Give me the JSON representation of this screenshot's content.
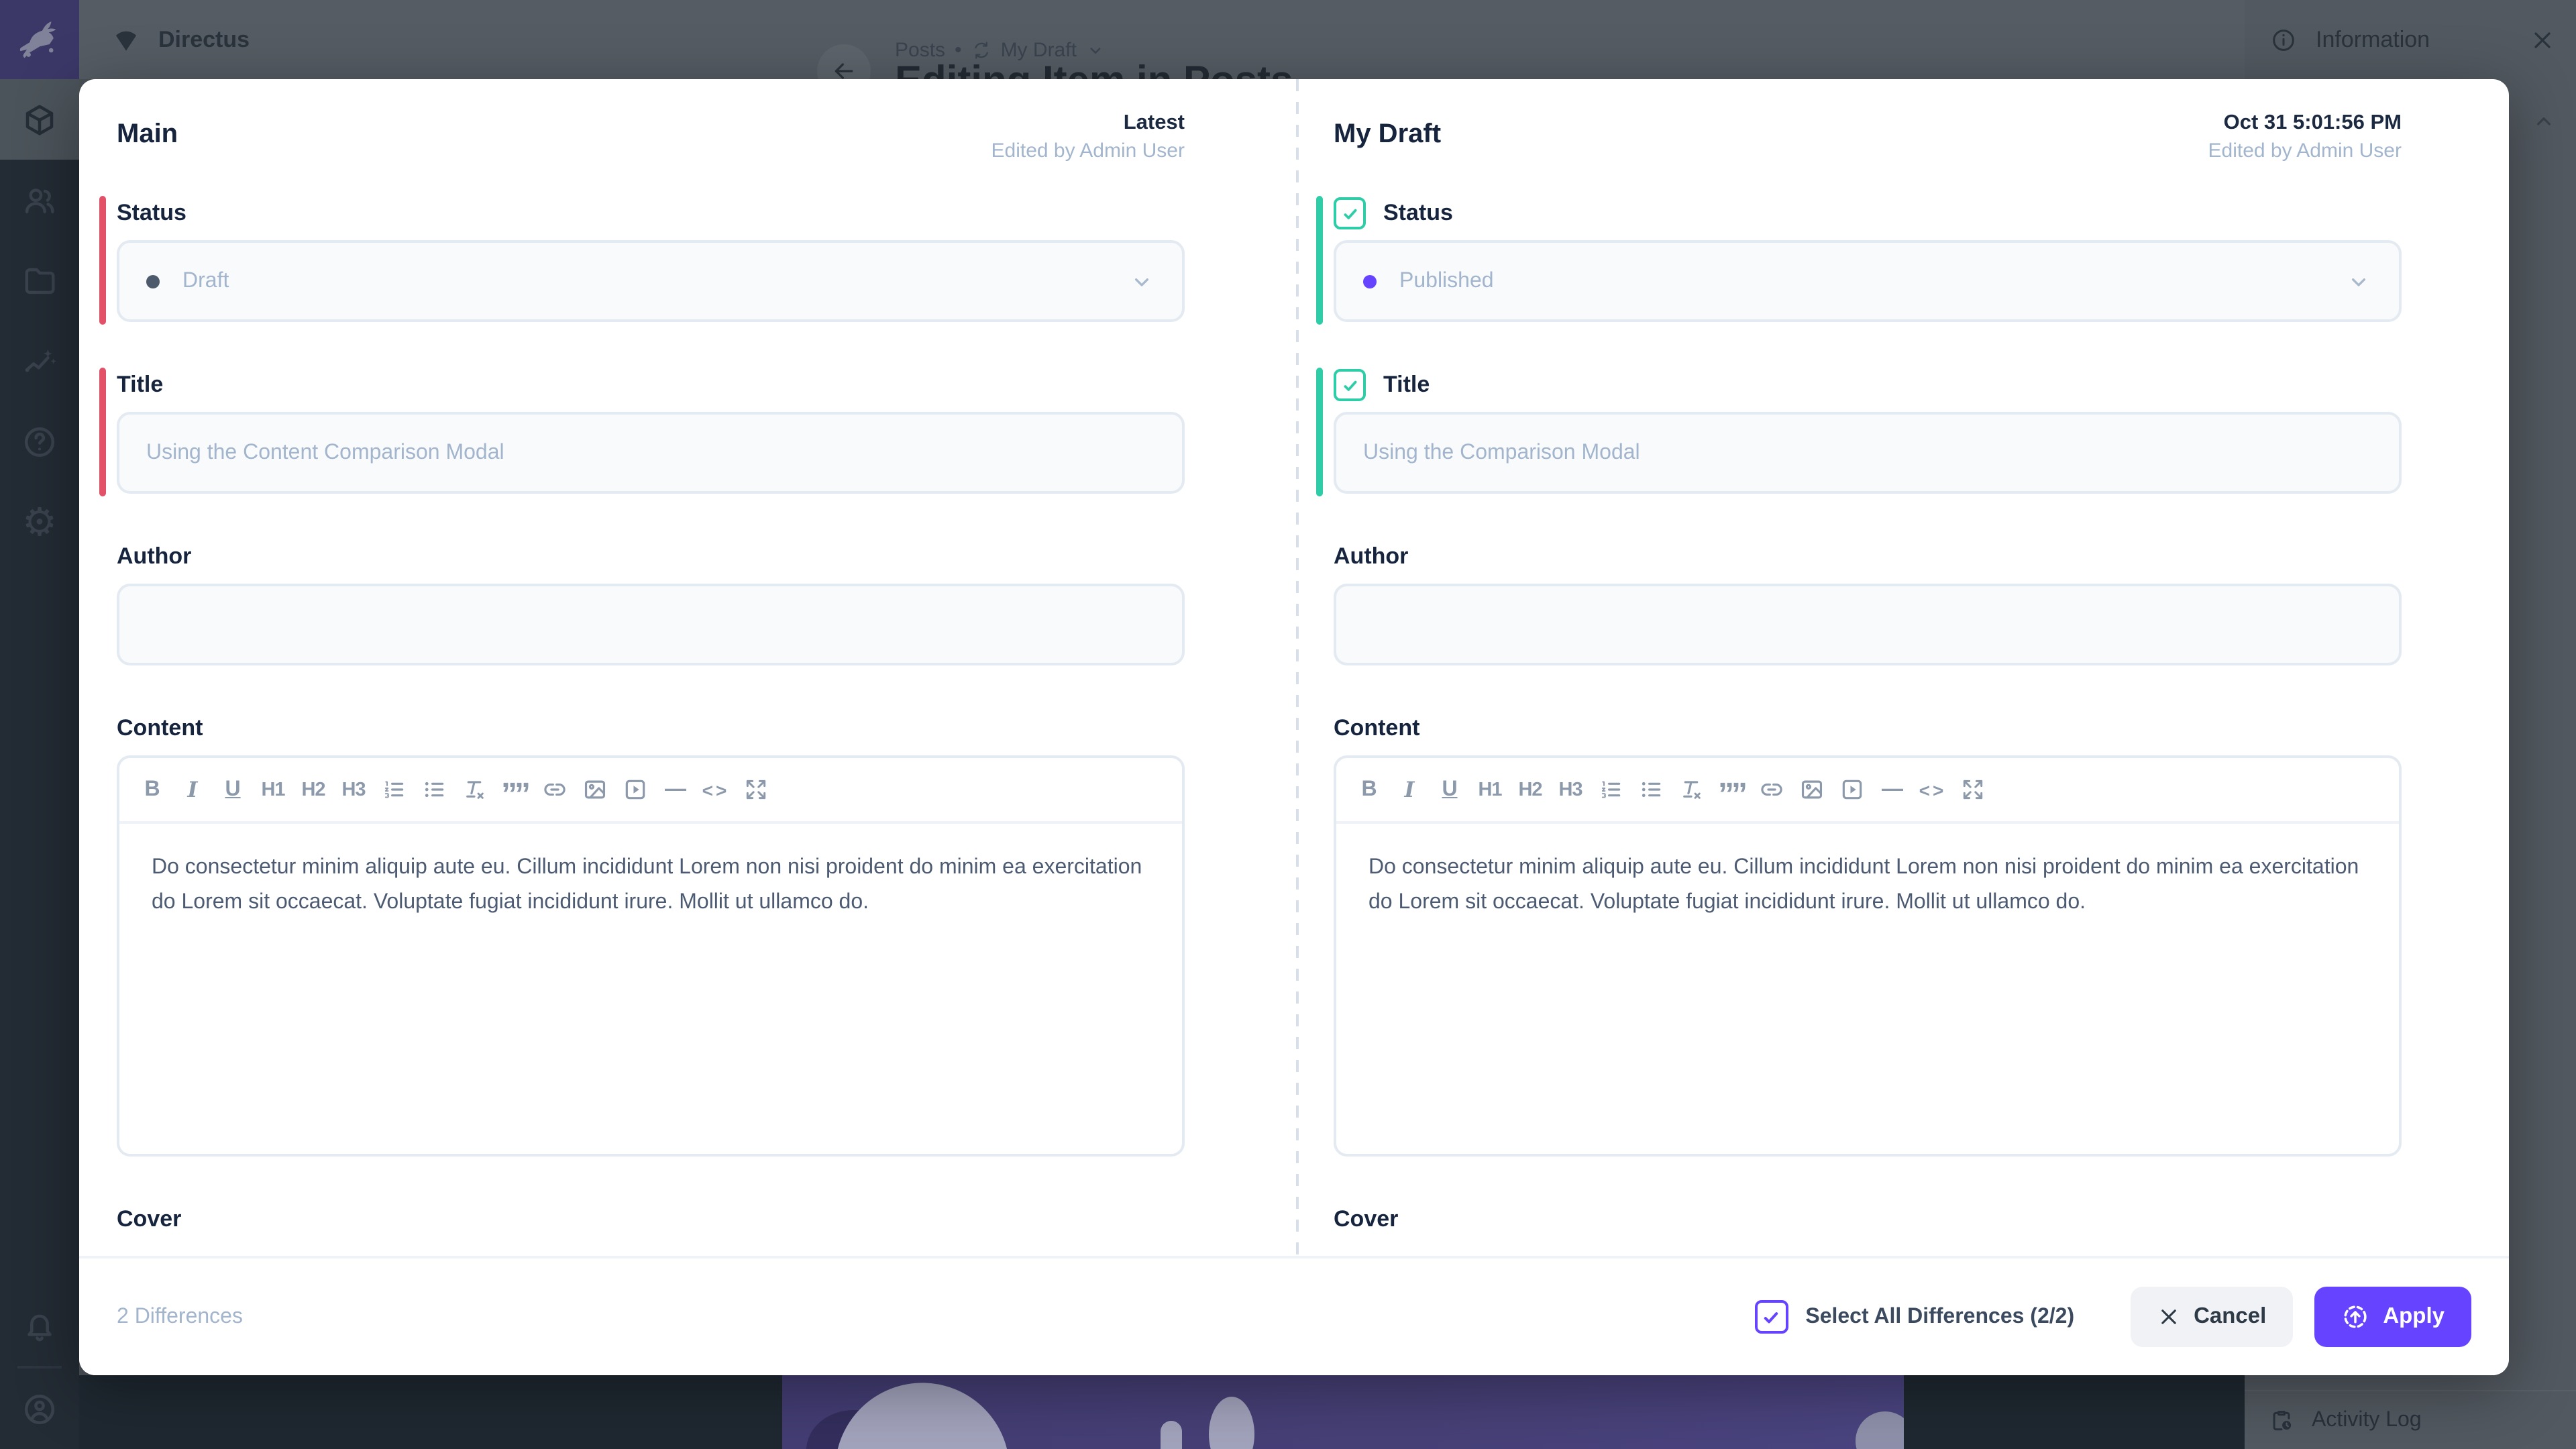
{
  "app": {
    "title": "Directus",
    "breadcrumb": {
      "collection": "Posts",
      "separator": "•",
      "version": "My Draft"
    },
    "page_title": "Editing Item in Posts",
    "module_bar": {
      "modules": [
        "collections",
        "user-directory",
        "file-library",
        "insights",
        "documentation",
        "settings"
      ],
      "active_module": "collections",
      "bottom": [
        "notifications",
        "account"
      ]
    },
    "info_panel": {
      "title": "Information"
    },
    "activity_log": {
      "title": "Activity Log"
    }
  },
  "modal": {
    "panes": [
      {
        "id": "main",
        "title": "Main",
        "meta_primary": "Latest",
        "meta_secondary": "Edited by Admin User",
        "accent": "#E35169",
        "show_checkboxes": false,
        "fields": [
          {
            "label": "Status",
            "type": "select",
            "value": "Draft",
            "dot_color": "#4d5a6b",
            "changed": true,
            "checked": false
          },
          {
            "label": "Title",
            "type": "text",
            "value": "Using the Content Comparison Modal",
            "changed": true,
            "checked": false
          },
          {
            "label": "Author",
            "type": "text",
            "value": "",
            "changed": false,
            "checked": false
          },
          {
            "label": "Content",
            "type": "richtext",
            "value": "Do consectetur minim aliquip aute eu. Cillum incididunt Lorem non nisi proident do minim ea exercitation do Lorem sit occaecat. Voluptate fugiat incididunt irure. Mollit ut ullamco do.",
            "changed": false,
            "checked": false
          },
          {
            "label": "Cover",
            "type": "clipped",
            "value": "",
            "changed": false,
            "checked": false
          }
        ]
      },
      {
        "id": "my-draft",
        "title": "My Draft",
        "meta_primary": "Oct 31 5:01:56 PM",
        "meta_secondary": "Edited by Admin User",
        "accent": "#2ECDA7",
        "show_checkboxes": true,
        "fields": [
          {
            "label": "Status",
            "type": "select",
            "value": "Published",
            "dot_color": "#6644ff",
            "changed": true,
            "checked": true
          },
          {
            "label": "Title",
            "type": "text",
            "value": "Using the Comparison Modal",
            "changed": true,
            "checked": true
          },
          {
            "label": "Author",
            "type": "text",
            "value": "",
            "changed": false,
            "checked": false
          },
          {
            "label": "Content",
            "type": "richtext",
            "value": "Do consectetur minim aliquip aute eu. Cillum incididunt Lorem non nisi proident do minim ea exercitation do Lorem sit occaecat. Voluptate fugiat incididunt irure. Mollit ut ullamco do.",
            "changed": false,
            "checked": false
          },
          {
            "label": "Cover",
            "type": "clipped",
            "value": "",
            "changed": false,
            "checked": false
          }
        ]
      }
    ],
    "editor_toolbar": [
      "bold",
      "italic",
      "underline",
      "h1",
      "h2",
      "h3",
      "ordered-list",
      "bullet-list",
      "clear-format",
      "blockquote",
      "link",
      "image",
      "video",
      "horizontal-rule",
      "code",
      "fullscreen"
    ],
    "toolbar_glyphs": {
      "bold": "B",
      "italic": "I",
      "underline": "U",
      "h1": "H1",
      "h2": "H2",
      "h3": "H3",
      "blockquote": "””",
      "horizontal-rule": "—",
      "code": "<>"
    },
    "footer": {
      "differences_label": "2 Differences",
      "select_all_label": "Select All Differences (2/2)",
      "select_all_checked": true,
      "cancel_label": "Cancel",
      "apply_label": "Apply"
    }
  },
  "colors": {
    "accent": "#6644FF",
    "danger": "#E35169",
    "success": "#2ECDA7"
  }
}
